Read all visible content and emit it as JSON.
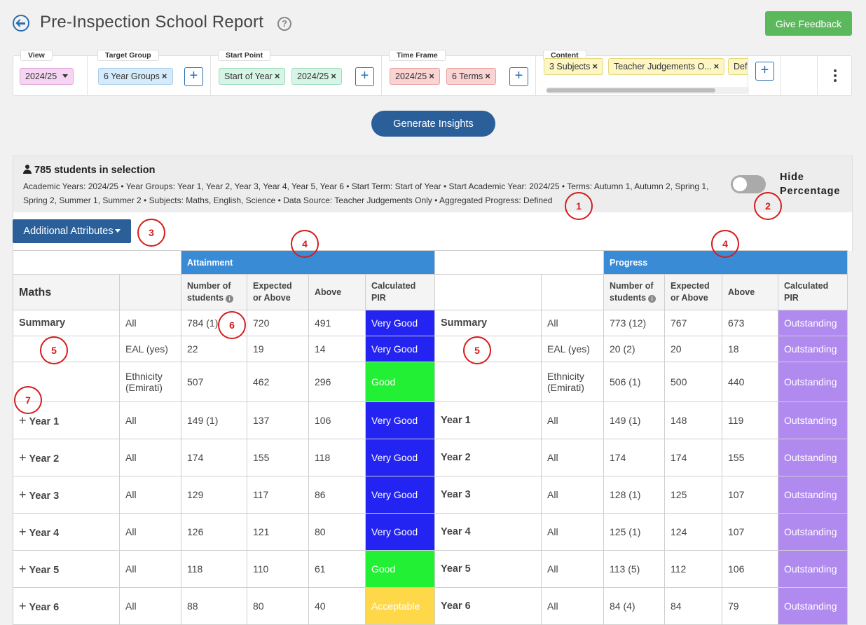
{
  "header": {
    "title": "Pre-Inspection School Report",
    "help_glyph": "?",
    "feedback_label": "Give Feedback"
  },
  "filters": {
    "view": {
      "label": "View",
      "value": "2024/25"
    },
    "target_group": {
      "label": "Target Group",
      "chips": [
        "6 Year Groups"
      ]
    },
    "start_point": {
      "label": "Start Point",
      "chips": [
        "Start of Year",
        "2024/25"
      ]
    },
    "time_frame": {
      "label": "Time Frame",
      "chips": [
        "2024/25",
        "6 Terms"
      ]
    },
    "content": {
      "label": "Content",
      "chips": [
        "3 Subjects",
        "Teacher Judgements O...",
        "Def"
      ]
    },
    "add_glyph": "+",
    "remove_glyph": "×"
  },
  "generate_label": "Generate Insights",
  "selection": {
    "title": "785 students in selection",
    "description": "Academic Years: 2024/25 • Year Groups: Year 1, Year 2, Year 3, Year 4, Year 5, Year 6 • Start Term: Start of Year • Start Academic Year: 2024/25 • Terms: Autumn 1, Autumn 2, Spring 1, Spring 2, Summer 1, Summer 2 • Subjects: Maths, English, Science • Data Source: Teacher Judgements Only • Aggregated Progress: Defined",
    "hide_percentage_label": "Hide Percentage",
    "hide_percentage_on": false
  },
  "additional_attributes_label": "Additional Attributes",
  "table": {
    "band_attainment": "Attainment",
    "band_progress": "Progress",
    "subject": "Maths",
    "col_number": "Number of students",
    "col_expected": "Expected or Above",
    "col_above": "Above",
    "col_pir": "Calculated PIR",
    "info_glyph": "i",
    "expand_glyph": "+",
    "rows": [
      {
        "label": "Summary",
        "expand": false,
        "group": "All",
        "a_num": "784 (1)",
        "a_exp": "720",
        "a_above": "491",
        "a_pir": "Very Good",
        "a_pir_class": "pir-vg",
        "p_label": "Summary",
        "p_group": "All",
        "p_num": "773 (12)",
        "p_exp": "767",
        "p_above": "673",
        "p_pir": "Outstanding",
        "p_pir_class": "pir-out"
      },
      {
        "label": "",
        "expand": false,
        "group": "EAL (yes)",
        "a_num": "22",
        "a_exp": "19",
        "a_above": "14",
        "a_pir": "Very Good",
        "a_pir_class": "pir-vg",
        "p_label": "",
        "p_group": "EAL (yes)",
        "p_num": "20 (2)",
        "p_exp": "20",
        "p_above": "18",
        "p_pir": "Outstanding",
        "p_pir_class": "pir-out"
      },
      {
        "label": "",
        "expand": false,
        "group": "Ethnicity (Emirati)",
        "a_num": "507",
        "a_exp": "462",
        "a_above": "296",
        "a_pir": "Good",
        "a_pir_class": "pir-good",
        "p_label": "",
        "p_group": "Ethnicity (Emirati)",
        "p_num": "506 (1)",
        "p_exp": "500",
        "p_above": "440",
        "p_pir": "Outstanding",
        "p_pir_class": "pir-out",
        "tall": true
      },
      {
        "label": "Year 1",
        "expand": true,
        "group": "All",
        "a_num": "149 (1)",
        "a_exp": "137",
        "a_above": "106",
        "a_pir": "Very Good",
        "a_pir_class": "pir-vg",
        "p_label": "Year 1",
        "p_group": "All",
        "p_num": "149 (1)",
        "p_exp": "148",
        "p_above": "119",
        "p_pir": "Outstanding",
        "p_pir_class": "pir-out"
      },
      {
        "label": "Year 2",
        "expand": true,
        "group": "All",
        "a_num": "174",
        "a_exp": "155",
        "a_above": "118",
        "a_pir": "Very Good",
        "a_pir_class": "pir-vg",
        "p_label": "Year 2",
        "p_group": "All",
        "p_num": "174",
        "p_exp": "174",
        "p_above": "155",
        "p_pir": "Outstanding",
        "p_pir_class": "pir-out"
      },
      {
        "label": "Year 3",
        "expand": true,
        "group": "All",
        "a_num": "129",
        "a_exp": "117",
        "a_above": "86",
        "a_pir": "Very Good",
        "a_pir_class": "pir-vg",
        "p_label": "Year 3",
        "p_group": "All",
        "p_num": "128 (1)",
        "p_exp": "125",
        "p_above": "107",
        "p_pir": "Outstanding",
        "p_pir_class": "pir-out"
      },
      {
        "label": "Year 4",
        "expand": true,
        "group": "All",
        "a_num": "126",
        "a_exp": "121",
        "a_above": "80",
        "a_pir": "Very Good",
        "a_pir_class": "pir-vg",
        "p_label": "Year 4",
        "p_group": "All",
        "p_num": "125 (1)",
        "p_exp": "124",
        "p_above": "107",
        "p_pir": "Outstanding",
        "p_pir_class": "pir-out"
      },
      {
        "label": "Year 5",
        "expand": true,
        "group": "All",
        "a_num": "118",
        "a_exp": "110",
        "a_above": "61",
        "a_pir": "Good",
        "a_pir_class": "pir-good",
        "p_label": "Year 5",
        "p_group": "All",
        "p_num": "113 (5)",
        "p_exp": "112",
        "p_above": "106",
        "p_pir": "Outstanding",
        "p_pir_class": "pir-out"
      },
      {
        "label": "Year 6",
        "expand": true,
        "group": "All",
        "a_num": "88",
        "a_exp": "80",
        "a_above": "40",
        "a_pir": "Acceptable",
        "a_pir_class": "pir-acc",
        "p_label": "Year 6",
        "p_group": "All",
        "p_num": "84 (4)",
        "p_exp": "84",
        "p_above": "79",
        "p_pir": "Outstanding",
        "p_pir_class": "pir-out"
      }
    ]
  },
  "annotations": [
    "1",
    "2",
    "3",
    "4",
    "4",
    "5",
    "5",
    "6",
    "7"
  ],
  "colors": {
    "very_good": "#2323f2",
    "good": "#22f034",
    "acceptable": "#ffd84a",
    "outstanding": "#b18af0",
    "band": "#3a8bd6",
    "primary": "#2b5f9a",
    "feedback": "#5cb85c",
    "annotation": "#d51c1c"
  }
}
